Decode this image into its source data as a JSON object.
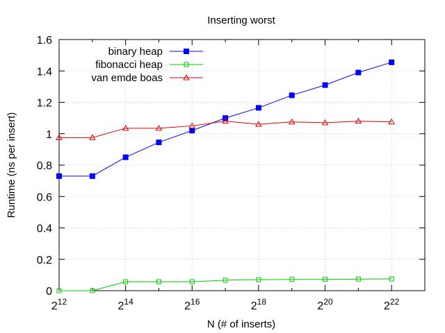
{
  "chart_data": {
    "type": "line",
    "title": "Inserting worst",
    "xlabel": "N (# of inserts)",
    "ylabel": "Runtime (ns per insert)",
    "x_scale": "log2",
    "x_exponents": [
      12,
      13,
      14,
      15,
      16,
      17,
      18,
      19,
      20,
      21,
      22
    ],
    "xlim_exponents": [
      12,
      23
    ],
    "x_ticks": [
      {
        "base": "2",
        "exp": "12"
      },
      {
        "base": "2",
        "exp": "14"
      },
      {
        "base": "2",
        "exp": "16"
      },
      {
        "base": "2",
        "exp": "18"
      },
      {
        "base": "2",
        "exp": "20"
      },
      {
        "base": "2",
        "exp": "22"
      }
    ],
    "ylim": [
      0,
      1.6
    ],
    "y_ticks": [
      "0",
      "0.2",
      "0.4",
      "0.6",
      "0.8",
      "1",
      "1.2",
      "1.4",
      "1.6"
    ],
    "grid": true,
    "legend_position": "top-left",
    "series": [
      {
        "name": "binary heap",
        "color": "#0000ff",
        "marker": "filled-square",
        "values": [
          0.73,
          0.73,
          0.85,
          0.945,
          1.02,
          1.1,
          1.165,
          1.245,
          1.31,
          1.39,
          1.455
        ]
      },
      {
        "name": "fibonacci heap",
        "color": "#00cc00",
        "marker": "open-square",
        "values": [
          0.0,
          0.0,
          0.057,
          0.057,
          0.057,
          0.067,
          0.07,
          0.072,
          0.072,
          0.074,
          0.075
        ]
      },
      {
        "name": "van emde boas",
        "color": "#dd0000",
        "marker": "open-triangle",
        "values": [
          0.975,
          0.975,
          1.035,
          1.035,
          1.05,
          1.08,
          1.06,
          1.075,
          1.07,
          1.08,
          1.075
        ]
      }
    ]
  }
}
